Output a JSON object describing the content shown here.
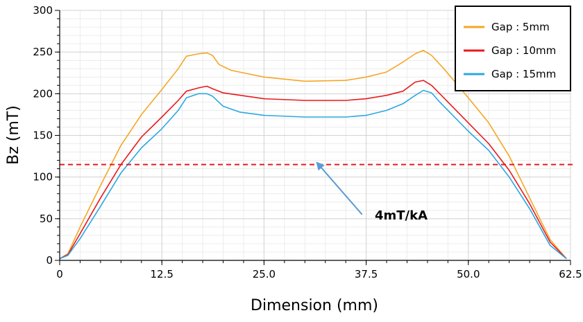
{
  "chart_data": {
    "type": "line",
    "xlabel": "Dimension (mm)",
    "ylabel": "Bz (mT)",
    "xlim": [
      0,
      62.5
    ],
    "ylim": [
      0,
      300
    ],
    "x_ticks": [
      "0",
      "12.5",
      "25.0",
      "37.5",
      "50.0",
      "62.5"
    ],
    "y_ticks": [
      "0",
      "50",
      "100",
      "150",
      "200",
      "250",
      "300"
    ],
    "grid": true,
    "legend_position": "top-right",
    "series": [
      {
        "name": "Gap :   5mm",
        "color": "#f5a623",
        "x": [
          0,
          1,
          2.5,
          5,
          7.5,
          10,
          12.5,
          14.5,
          15.5,
          17,
          18,
          18.7,
          19.5,
          21,
          25,
          30,
          35,
          37.5,
          40,
          42,
          43.5,
          44.5,
          45.5,
          47,
          50,
          52.5,
          55,
          57.5,
          60,
          62
        ],
        "y": [
          2,
          8,
          40,
          90,
          138,
          175,
          205,
          230,
          245,
          248,
          249,
          246,
          235,
          228,
          220,
          215,
          216,
          220,
          226,
          238,
          248,
          252,
          246,
          230,
          195,
          165,
          125,
          75,
          25,
          2
        ]
      },
      {
        "name": "Gap : 10mm",
        "color": "#e8191c",
        "x": [
          0,
          1,
          2.5,
          5,
          7.5,
          10,
          12.5,
          14.5,
          15.5,
          17,
          18,
          18.7,
          20,
          25,
          30,
          35,
          37.5,
          40,
          42,
          43.5,
          44.5,
          45.5,
          47,
          50,
          52.5,
          55,
          57.5,
          60,
          62
        ],
        "y": [
          2,
          7,
          32,
          75,
          115,
          148,
          172,
          192,
          203,
          207,
          209,
          206,
          201,
          194,
          192,
          192,
          194,
          198,
          203,
          214,
          216,
          210,
          195,
          165,
          140,
          108,
          68,
          22,
          2
        ]
      },
      {
        "name": "Gap : 15mm",
        "color": "#29a7e1",
        "x": [
          0,
          1,
          2.5,
          5,
          7.5,
          10,
          12.5,
          14.5,
          15.5,
          17,
          18,
          18.7,
          20,
          22,
          25,
          30,
          35,
          37.5,
          40,
          42,
          43.5,
          44.5,
          45.5,
          46.5,
          50,
          52.5,
          55,
          57.5,
          60,
          62
        ],
        "y": [
          2,
          6,
          26,
          65,
          105,
          135,
          158,
          180,
          195,
          200,
          200,
          197,
          185,
          178,
          174,
          172,
          172,
          174,
          180,
          188,
          198,
          204,
          201,
          190,
          155,
          132,
          100,
          62,
          18,
          2
        ]
      }
    ],
    "reference_line": {
      "y": 115,
      "color": "#e8191c",
      "style": "dashed"
    },
    "annotation": {
      "text": "4mT/kA",
      "arrow_to": {
        "x": 31.5,
        "y": 117
      },
      "arrow_from": {
        "x": 37,
        "y": 55
      }
    }
  }
}
